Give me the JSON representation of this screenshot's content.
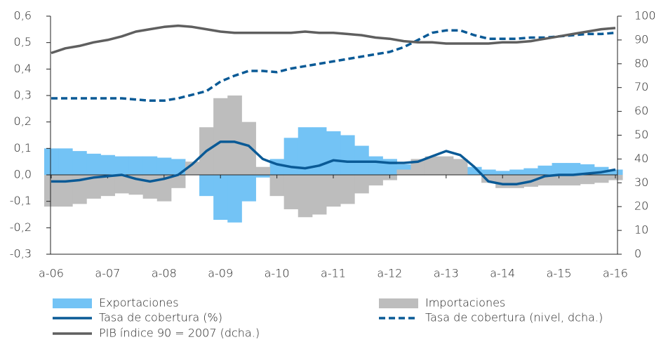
{
  "chart_data": {
    "type": "combo",
    "categories": [
      "a-06",
      null,
      null,
      null,
      "a-07",
      null,
      null,
      null,
      "a-08",
      null,
      null,
      null,
      "a-09",
      null,
      null,
      null,
      "a-10",
      null,
      null,
      null,
      "a-11",
      null,
      null,
      null,
      "a-12",
      null,
      null,
      null,
      "a-13",
      null,
      null,
      null,
      "a-14",
      null,
      null,
      null,
      "a-15",
      null,
      null,
      null,
      "a-16"
    ],
    "ylim": [
      -0.3,
      0.6
    ],
    "yticks": [
      {
        "value": -0.3,
        "label": "-0,3"
      },
      {
        "value": -0.2,
        "label": "-0,2"
      },
      {
        "value": -0.1,
        "label": "-0,1"
      },
      {
        "value": 0,
        "label": "0,0"
      },
      {
        "value": 0.1,
        "label": "0,1"
      },
      {
        "value": 0.2,
        "label": "0,2"
      },
      {
        "value": 0.3,
        "label": "0,3"
      },
      {
        "value": 0.4,
        "label": "0,4"
      },
      {
        "value": 0.5,
        "label": "0,5"
      },
      {
        "value": 0.6,
        "label": "0,6"
      }
    ],
    "y2lim": [
      0,
      100
    ],
    "y2ticks": [
      0,
      10,
      20,
      30,
      40,
      50,
      60,
      70,
      80,
      90,
      100
    ],
    "series": [
      {
        "name": "Exportaciones",
        "color": "#73c3f5",
        "style": "bar",
        "values": [
          0.1,
          0.1,
          0.09,
          0.08,
          0.075,
          0.07,
          0.07,
          0.07,
          0.065,
          0.06,
          0.01,
          -0.08,
          -0.17,
          -0.18,
          -0.1,
          -0.01,
          0.06,
          0.14,
          0.18,
          0.18,
          0.165,
          0.15,
          0.11,
          0.07,
          0.06,
          0.04,
          0.045,
          0.05,
          0.055,
          0.045,
          0.03,
          0.02,
          0.015,
          0.02,
          0.025,
          0.035,
          0.045,
          0.045,
          0.04,
          0.03,
          0.02
        ]
      },
      {
        "name": "Importaciones",
        "color": "#bdbdbd",
        "style": "bar",
        "values": [
          -0.12,
          -0.12,
          -0.11,
          -0.09,
          -0.08,
          -0.07,
          -0.075,
          -0.09,
          -0.1,
          -0.05,
          0.05,
          0.18,
          0.29,
          0.3,
          0.2,
          0.03,
          -0.08,
          -0.13,
          -0.16,
          -0.15,
          -0.12,
          -0.11,
          -0.07,
          -0.04,
          -0.02,
          0.02,
          0.06,
          0.07,
          0.07,
          0.06,
          0.0,
          -0.03,
          -0.05,
          -0.05,
          -0.045,
          -0.04,
          -0.04,
          -0.04,
          -0.035,
          -0.03,
          -0.02
        ]
      },
      {
        "name": "Tasa de cobertura (%)",
        "color": "#0a5a96",
        "style": "line",
        "values": [
          -0.025,
          -0.025,
          -0.02,
          -0.01,
          -0.005,
          0.0,
          -0.015,
          -0.025,
          -0.015,
          0.0,
          0.04,
          0.09,
          0.125,
          0.125,
          0.11,
          0.06,
          0.04,
          0.03,
          0.025,
          0.035,
          0.055,
          0.05,
          0.05,
          0.05,
          0.045,
          0.045,
          0.05,
          0.07,
          0.09,
          0.075,
          0.03,
          -0.025,
          -0.035,
          -0.035,
          -0.025,
          -0.005,
          0.0,
          0.0,
          0.005,
          0.01,
          0.02
        ]
      },
      {
        "name": "Tasa de cobertura (nivel, dcha.)",
        "color": "#0a5a96",
        "style": "dash",
        "axis": "y2",
        "values": [
          65.5,
          65.5,
          65.5,
          65.5,
          65.5,
          65.5,
          65,
          64.5,
          64.5,
          65.5,
          67,
          68.5,
          72.5,
          75,
          77,
          77,
          76.5,
          78,
          79,
          80,
          81,
          82,
          83,
          84,
          85,
          87,
          90,
          93,
          94,
          94,
          92,
          90.5,
          90.5,
          90.5,
          91,
          91,
          91.5,
          92,
          92.5,
          92.5,
          93
        ]
      },
      {
        "name": "PIB índice 90 = 2007 (dcha.)",
        "color": "#5f5f5f",
        "style": "line",
        "axis": "y2",
        "values": [
          84.5,
          86.5,
          87.5,
          89,
          90,
          91.5,
          93.5,
          94.5,
          95.5,
          96,
          95.5,
          94.5,
          93.5,
          93,
          93,
          93,
          93,
          93,
          93.5,
          93,
          93,
          92.5,
          92,
          91,
          90.5,
          89.5,
          89,
          89,
          88.5,
          88.5,
          88.5,
          88.5,
          89,
          89,
          89.5,
          90.5,
          91.5,
          92.5,
          93.5,
          94.5,
          95
        ]
      }
    ]
  }
}
